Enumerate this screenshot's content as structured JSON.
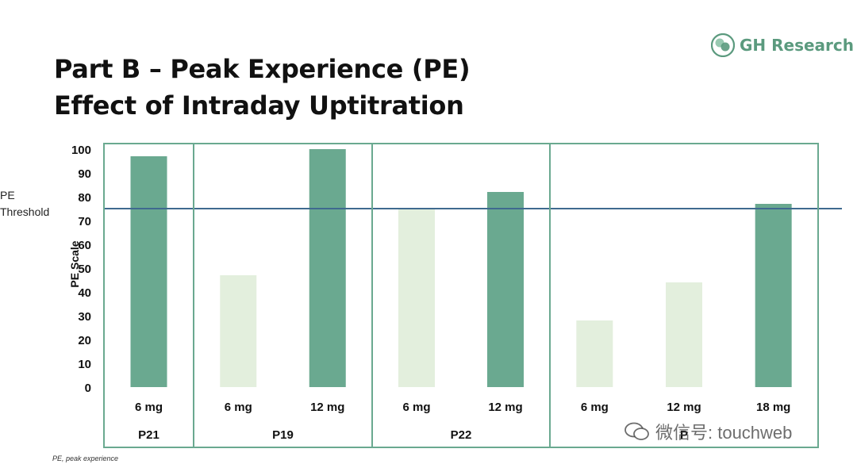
{
  "header": {
    "title_line1": "Part B – Peak Experience (PE)",
    "title_line2": "Effect of Intraday Uptitration"
  },
  "logo": {
    "text": "GH Research",
    "color": "#5b9a7e"
  },
  "footnote": "PE, peak experience",
  "watermark": "微信号: touchweb",
  "colors": {
    "dark_bar": "#6aa990",
    "light_bar": "#e3efdd",
    "threshold_line": "#3f6a8f",
    "frame": "#6aa990"
  },
  "chart_data": {
    "type": "bar",
    "ylabel": "PE Scale",
    "ylim": [
      0,
      100
    ],
    "yticks": [
      0,
      10,
      20,
      30,
      40,
      50,
      60,
      70,
      80,
      90,
      100
    ],
    "threshold": {
      "label": "PE Threshold",
      "value": 75
    },
    "groups": [
      {
        "patient": "P21",
        "bars": [
          {
            "dose": "6 mg",
            "value": 97,
            "above_threshold": true
          }
        ]
      },
      {
        "patient": "P19",
        "bars": [
          {
            "dose": "6 mg",
            "value": 47,
            "above_threshold": false
          },
          {
            "dose": "12 mg",
            "value": 100,
            "above_threshold": true
          }
        ]
      },
      {
        "patient": "P22",
        "bars": [
          {
            "dose": "6 mg",
            "value": 75,
            "above_threshold": false
          },
          {
            "dose": "12 mg",
            "value": 82,
            "above_threshold": true
          }
        ]
      },
      {
        "patient": "P",
        "bars": [
          {
            "dose": "6 mg",
            "value": 28,
            "above_threshold": false
          },
          {
            "dose": "12 mg",
            "value": 44,
            "above_threshold": false
          },
          {
            "dose": "18 mg",
            "value": 77,
            "above_threshold": true
          }
        ]
      }
    ]
  }
}
